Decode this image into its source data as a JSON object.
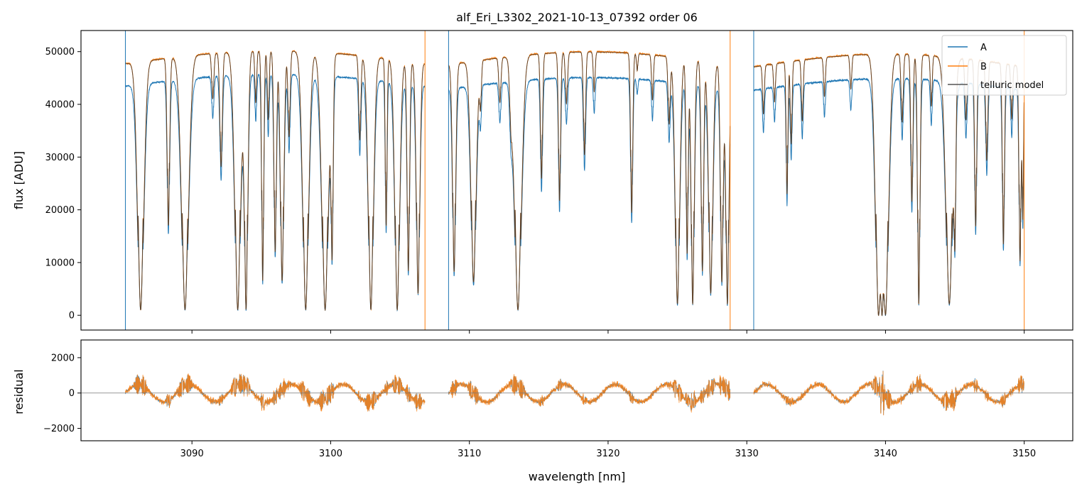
{
  "chart_data": [
    {
      "type": "line",
      "title": "alf_Eri_L3302_2021-10-13_07392  order 06",
      "xlabel": "",
      "ylabel": "flux [ADU]",
      "xlim": [
        3082,
        3153.5
      ],
      "ylim": [
        -2800,
        54000
      ],
      "xticks": [
        3090,
        3100,
        3110,
        3120,
        3130,
        3140,
        3150
      ],
      "yticks": [
        0,
        10000,
        20000,
        30000,
        40000,
        50000
      ],
      "ytick_labels": [
        "0",
        "10000",
        "20000",
        "30000",
        "40000",
        "50000"
      ],
      "legend_position": "top-right",
      "grid": false,
      "segments": [
        {
          "x_start": 3085.2,
          "x_end": 3106.8,
          "level_A": 44800,
          "level_B": 49200
        },
        {
          "x_start": 3108.5,
          "x_end": 3128.8,
          "level_A": 44200,
          "level_B": 49000
        },
        {
          "x_start": 3130.5,
          "x_end": 3150.0,
          "level_A": 44000,
          "level_B": 48600
        }
      ],
      "absorption_lines": [
        [
          3086.3,
          45000,
          0.18
        ],
        [
          3088.3,
          30000,
          0.07
        ],
        [
          3089.5,
          45000,
          0.2
        ],
        [
          3091.5,
          8000,
          0.06
        ],
        [
          3092.1,
          20000,
          0.07
        ],
        [
          3093.3,
          45000,
          0.17
        ],
        [
          3093.9,
          45000,
          0.1
        ],
        [
          3094.6,
          9000,
          0.05
        ],
        [
          3095.1,
          40000,
          0.06
        ],
        [
          3095.5,
          12000,
          0.05
        ],
        [
          3096.0,
          35000,
          0.07
        ],
        [
          3096.5,
          40000,
          0.1
        ],
        [
          3097.0,
          15000,
          0.06
        ],
        [
          3098.2,
          45000,
          0.17
        ],
        [
          3099.6,
          45000,
          0.19
        ],
        [
          3100.1,
          35000,
          0.06
        ],
        [
          3102.1,
          15000,
          0.06
        ],
        [
          3102.9,
          45000,
          0.15
        ],
        [
          3104.0,
          30000,
          0.05
        ],
        [
          3104.8,
          45000,
          0.14
        ],
        [
          3105.6,
          38000,
          0.07
        ],
        [
          3106.3,
          42000,
          0.1
        ],
        [
          3108.9,
          38000,
          0.09
        ],
        [
          3110.3,
          40000,
          0.15
        ],
        [
          3110.8,
          8000,
          0.05
        ],
        [
          3112.2,
          8000,
          0.06
        ],
        [
          3113.0,
          9000,
          0.07
        ],
        [
          3113.5,
          45000,
          0.2
        ],
        [
          3115.2,
          22000,
          0.06
        ],
        [
          3116.5,
          26000,
          0.06
        ],
        [
          3117.0,
          9000,
          0.06
        ],
        [
          3118.3,
          18000,
          0.06
        ],
        [
          3119.0,
          7000,
          0.05
        ],
        [
          3121.7,
          28000,
          0.06
        ],
        [
          3122.1,
          3000,
          0.04
        ],
        [
          3123.2,
          8000,
          0.05
        ],
        [
          3124.4,
          12000,
          0.06
        ],
        [
          3125.0,
          44000,
          0.13
        ],
        [
          3125.7,
          35000,
          0.06
        ],
        [
          3126.1,
          44000,
          0.09
        ],
        [
          3126.8,
          38000,
          0.07
        ],
        [
          3127.4,
          42000,
          0.12
        ],
        [
          3128.2,
          40000,
          0.08
        ],
        [
          3128.6,
          44000,
          0.09
        ],
        [
          3131.2,
          9000,
          0.05
        ],
        [
          3132.0,
          7000,
          0.05
        ],
        [
          3132.9,
          24000,
          0.05
        ],
        [
          3133.2,
          15000,
          0.05
        ],
        [
          3134.0,
          11000,
          0.05
        ],
        [
          3135.6,
          7000,
          0.05
        ],
        [
          3137.5,
          6000,
          0.05
        ],
        [
          3139.5,
          48000,
          0.18
        ],
        [
          3139.75,
          47000,
          0.08
        ],
        [
          3140.0,
          48000,
          0.18
        ],
        [
          3141.2,
          12000,
          0.06
        ],
        [
          3141.9,
          26000,
          0.06
        ],
        [
          3142.4,
          44000,
          0.07
        ],
        [
          3143.3,
          9000,
          0.05
        ],
        [
          3144.6,
          44000,
          0.2
        ],
        [
          3145.0,
          30000,
          0.05
        ],
        [
          3145.8,
          11000,
          0.06
        ],
        [
          3146.5,
          30000,
          0.06
        ],
        [
          3147.3,
          18000,
          0.06
        ],
        [
          3148.5,
          33000,
          0.06
        ],
        [
          3149.1,
          10000,
          0.05
        ],
        [
          3149.7,
          36000,
          0.06
        ],
        [
          3149.9,
          28000,
          0.04
        ]
      ],
      "series": [
        {
          "name": "A",
          "color": "#1f77b4"
        },
        {
          "name": "B",
          "color": "#ff7f0e"
        },
        {
          "name": "telluric model",
          "color": "#333333"
        }
      ]
    },
    {
      "type": "line",
      "title": "",
      "xlabel": "wavelength [nm]",
      "ylabel": "residual",
      "xlim": [
        3082,
        3153.5
      ],
      "ylim": [
        -2700,
        3000
      ],
      "xticks": [
        3090,
        3100,
        3110,
        3120,
        3130,
        3140,
        3150
      ],
      "xtick_labels": [
        "3090",
        "3100",
        "3110",
        "3120",
        "3130",
        "3140",
        "3150"
      ],
      "yticks": [
        -2000,
        0,
        2000
      ],
      "ytick_labels": [
        "−2000",
        "0",
        "2000"
      ],
      "reference_line_y": 0,
      "series": [
        {
          "name": "A",
          "color": "#1f77b4"
        },
        {
          "name": "B",
          "color": "#ff7f0e"
        }
      ]
    }
  ]
}
